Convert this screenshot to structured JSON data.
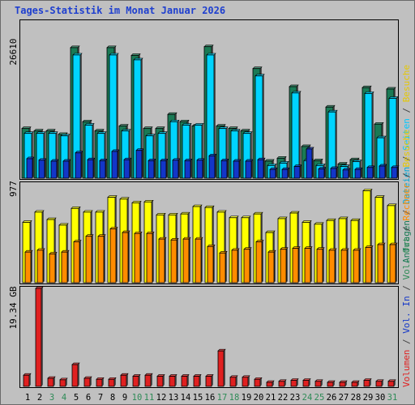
{
  "title": "Tages-Statistik im Monat Januar 2026",
  "colors": {
    "frame": "#5a5a5a",
    "plot_bg": "#c0c0c0",
    "title": "#1e3fcf",
    "hits": "#1a7a55",
    "files": "#00d4ff",
    "pages": "#1336c8",
    "visits": "#ffff00",
    "sites": "#ff8c00",
    "kbytes": "#e02020",
    "weekend_day": "#2e8b57",
    "weekday": "#000000"
  },
  "chart_data": [
    {
      "type": "bar",
      "panel": "hits-files-pages",
      "y_max_label": "26610",
      "ylim": [
        0,
        26610
      ],
      "x": [
        1,
        2,
        3,
        4,
        5,
        6,
        7,
        8,
        9,
        10,
        11,
        12,
        13,
        14,
        15,
        16,
        17,
        18,
        19,
        20,
        21,
        22,
        23,
        24,
        25,
        26,
        27,
        28,
        29,
        30,
        31
      ],
      "series": [
        {
          "name": "Anfragen",
          "color": "#1a7a55",
          "values": [
            10200,
            9700,
            9700,
            9000,
            26800,
            11600,
            9700,
            26800,
            10700,
            25200,
            10200,
            10200,
            13100,
            11600,
            10700,
            27000,
            10700,
            10200,
            9700,
            22500,
            3500,
            4100,
            18800,
            6500,
            3600,
            14600,
            2900,
            3800,
            18600,
            11100,
            18300
          ]
        },
        {
          "name": "Dateien",
          "color": "#00d4ff",
          "values": [
            9200,
            9200,
            9200,
            8700,
            25300,
            10900,
            9200,
            25300,
            9700,
            24300,
            8700,
            9200,
            11600,
            10900,
            10900,
            25300,
            10200,
            9700,
            9200,
            21000,
            2600,
            3100,
            17500,
            3600,
            2600,
            13600,
            2400,
            3400,
            17400,
            8300,
            16400
          ]
        },
        {
          "name": "Seiten",
          "color": "#1336c8",
          "values": [
            4000,
            3700,
            3500,
            3500,
            5200,
            3800,
            3600,
            5500,
            3800,
            5700,
            3600,
            3600,
            3700,
            3600,
            3700,
            4600,
            3600,
            3500,
            3500,
            3800,
            1800,
            1800,
            2400,
            6000,
            1900,
            2000,
            1700,
            1800,
            2200,
            2500,
            2200
          ]
        }
      ]
    },
    {
      "type": "bar",
      "panel": "visits-sites",
      "y_max_label": "977",
      "ylim": [
        0,
        977
      ],
      "x": [
        1,
        2,
        3,
        4,
        5,
        6,
        7,
        8,
        9,
        10,
        11,
        12,
        13,
        14,
        15,
        16,
        17,
        18,
        19,
        20,
        21,
        22,
        23,
        24,
        25,
        26,
        27,
        28,
        29,
        30,
        31
      ],
      "series": [
        {
          "name": "Besuche",
          "color": "#ffff00",
          "values": [
            650,
            760,
            680,
            620,
            800,
            760,
            760,
            920,
            900,
            860,
            870,
            730,
            730,
            740,
            820,
            810,
            760,
            700,
            700,
            740,
            540,
            690,
            750,
            650,
            630,
            670,
            690,
            670,
            990,
            920,
            830
          ]
        },
        {
          "name": "Rechner",
          "color": "#ff8c00",
          "values": [
            330,
            350,
            310,
            330,
            440,
            500,
            500,
            580,
            540,
            530,
            530,
            470,
            460,
            470,
            470,
            390,
            320,
            350,
            360,
            440,
            330,
            360,
            370,
            370,
            360,
            350,
            350,
            350,
            380,
            410,
            410
          ]
        }
      ]
    },
    {
      "type": "bar",
      "panel": "volume",
      "y_max_label": "19.34 GB",
      "ylim": [
        0,
        19.34
      ],
      "x": [
        1,
        2,
        3,
        4,
        5,
        6,
        7,
        8,
        9,
        10,
        11,
        12,
        13,
        14,
        15,
        16,
        17,
        18,
        19,
        20,
        21,
        22,
        23,
        24,
        25,
        26,
        27,
        28,
        29,
        30,
        31
      ],
      "series": [
        {
          "name": "Volumen",
          "color": "#e02020",
          "values": [
            2.2,
            19.34,
            1.6,
            1.3,
            4.3,
            1.6,
            1.4,
            1.4,
            2.2,
            2.0,
            2.2,
            2.0,
            2.0,
            2.0,
            2.0,
            2.0,
            7.0,
            1.8,
            1.8,
            1.4,
            0.8,
            1.0,
            1.2,
            1.2,
            1.0,
            0.8,
            0.8,
            0.8,
            1.2,
            1.0,
            1.0
          ]
        }
      ]
    }
  ],
  "right_legend": {
    "top": [
      {
        "text": "Anfragen",
        "color": "#1a7a55"
      },
      {
        "text": " / ",
        "color": "#444444"
      },
      {
        "text": "Dateien",
        "color": "#00a8d8"
      },
      {
        "text": " / ",
        "color": "#444444"
      },
      {
        "text": "Seiten",
        "color": "#00c8ff"
      },
      {
        "text": " / ",
        "color": "#444444"
      },
      {
        "text": "Besuche",
        "color": "#e6c800"
      }
    ],
    "bottom": [
      {
        "text": "Volumen",
        "color": "#e02020"
      },
      {
        "text": " / ",
        "color": "#444444"
      },
      {
        "text": "Vol. In",
        "color": "#1336c8"
      },
      {
        "text": " / ",
        "color": "#444444"
      },
      {
        "text": "Vol. Out",
        "color": "#2e8b57"
      },
      {
        "text": " / ",
        "color": "#444444"
      },
      {
        "text": "Rechner",
        "color": "#ff8c00"
      },
      {
        "text": " / ",
        "color": "#444444"
      },
      {
        "text": "Besuche",
        "color": "#e6c800"
      }
    ]
  },
  "x_axis": {
    "labels": [
      "1",
      "2",
      "3",
      "4",
      "5",
      "6",
      "7",
      "8",
      "9",
      "10",
      "11",
      "12",
      "13",
      "14",
      "15",
      "16",
      "17",
      "18",
      "19",
      "20",
      "21",
      "22",
      "23",
      "24",
      "25",
      "26",
      "27",
      "28",
      "29",
      "30",
      "31"
    ],
    "weekend": [
      3,
      4,
      10,
      11,
      17,
      18,
      24,
      25,
      31
    ]
  }
}
